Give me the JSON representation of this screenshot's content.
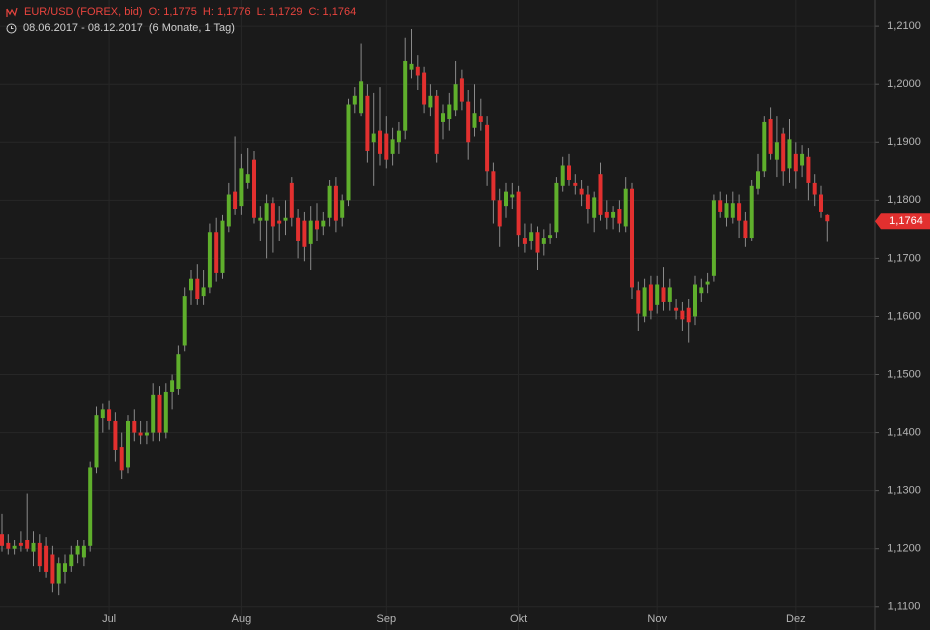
{
  "chart_data": {
    "type": "candlestick",
    "title": "EUR/USD (FOREX, bid)",
    "ohlc_text": [
      "O: 1,1775",
      "H: 1,1776",
      "L: 1,1729",
      "C: 1,1764"
    ],
    "subtitle": "08.06.2017 - 08.12.2017",
    "period": "(6 Monate, 1 Tag)",
    "categories": [
      null,
      null,
      null,
      null,
      null,
      null,
      null,
      null,
      null,
      null,
      null,
      null,
      null,
      null,
      null,
      null,
      null,
      "Jul",
      null,
      null,
      null,
      null,
      null,
      null,
      null,
      null,
      null,
      null,
      null,
      null,
      null,
      null,
      null,
      null,
      null,
      null,
      null,
      null,
      "Aug",
      null,
      null,
      null,
      null,
      null,
      null,
      null,
      null,
      null,
      null,
      null,
      null,
      null,
      null,
      null,
      null,
      null,
      null,
      null,
      null,
      null,
      null,
      "Sep",
      null,
      null,
      null,
      null,
      null,
      null,
      null,
      null,
      null,
      null,
      null,
      null,
      null,
      null,
      null,
      null,
      null,
      null,
      null,
      null,
      "Okt",
      null,
      null,
      null,
      null,
      null,
      null,
      null,
      null,
      null,
      null,
      null,
      null,
      null,
      null,
      null,
      null,
      null,
      null,
      null,
      null,
      null,
      "Nov",
      null,
      null,
      null,
      null,
      null,
      null,
      null,
      null,
      null,
      null,
      null,
      null,
      null,
      null,
      null,
      null,
      null,
      null,
      null,
      null,
      null,
      "Dez",
      null,
      null,
      null,
      null,
      null
    ],
    "open": [
      1.1225,
      1.121,
      1.12,
      1.121,
      1.1215,
      1.1195,
      1.121,
      1.1205,
      1.119,
      1.114,
      1.116,
      1.117,
      1.119,
      1.1185,
      1.1205,
      1.134,
      1.1425,
      1.144,
      1.142,
      1.1375,
      1.134,
      1.142,
      1.14,
      1.1395,
      1.14,
      1.1465,
      1.14,
      1.147,
      1.1475,
      1.155,
      1.1645,
      1.1665,
      1.1635,
      1.165,
      1.1745,
      1.1675,
      1.1755,
      1.1815,
      1.179,
      1.183,
      1.187,
      1.1765,
      1.1765,
      1.1795,
      1.1765,
      1.1765,
      1.183,
      1.177,
      1.1765,
      1.1725,
      1.1765,
      1.1755,
      1.177,
      1.1825,
      1.177,
      1.18,
      1.1965,
      1.195,
      1.198,
      1.19,
      1.192,
      1.1915,
      1.188,
      1.19,
      1.192,
      1.2025,
      1.203,
      1.202,
      1.196,
      1.198,
      1.1935,
      1.194,
      1.1955,
      1.201,
      1.197,
      1.1925,
      1.1945,
      1.193,
      1.185,
      1.18,
      1.179,
      1.1805,
      1.1815,
      1.1735,
      1.173,
      1.1745,
      1.1725,
      1.1735,
      1.1745,
      1.1825,
      1.186,
      1.183,
      1.182,
      1.181,
      1.177,
      1.1845,
      1.178,
      1.177,
      1.1785,
      1.1755,
      1.182,
      1.1645,
      1.16,
      1.1655,
      1.162,
      1.165,
      1.1625,
      1.1615,
      1.161,
      1.1615,
      1.16,
      1.164,
      1.1655,
      1.167,
      1.18,
      1.177,
      1.177,
      1.1795,
      1.1765,
      1.1735,
      1.182,
      1.185,
      1.194,
      1.187,
      1.1915,
      1.1855,
      1.188,
      1.186,
      1.1875,
      1.183,
      1.181,
      1.1775
    ],
    "high": [
      1.126,
      1.1225,
      1.1215,
      1.123,
      1.1295,
      1.123,
      1.1225,
      1.122,
      1.1205,
      1.1185,
      1.119,
      1.1205,
      1.1215,
      1.1215,
      1.135,
      1.1445,
      1.145,
      1.1455,
      1.1435,
      1.14,
      1.143,
      1.144,
      1.142,
      1.142,
      1.1485,
      1.148,
      1.1485,
      1.15,
      1.155,
      1.165,
      1.168,
      1.169,
      1.168,
      1.176,
      1.177,
      1.1775,
      1.183,
      1.191,
      1.188,
      1.189,
      1.1885,
      1.179,
      1.181,
      1.1805,
      1.179,
      1.18,
      1.184,
      1.1785,
      1.178,
      1.179,
      1.1795,
      1.178,
      1.1835,
      1.184,
      1.181,
      1.1975,
      1.1995,
      1.207,
      1.2,
      1.1985,
      1.1995,
      1.1945,
      1.1925,
      1.1935,
      1.208,
      1.2095,
      1.205,
      1.203,
      1.2,
      1.199,
      1.1965,
      1.1985,
      1.204,
      1.2025,
      1.199,
      1.2,
      1.1975,
      1.1945,
      1.1865,
      1.182,
      1.183,
      1.183,
      1.1825,
      1.176,
      1.176,
      1.1755,
      1.175,
      1.176,
      1.184,
      1.1875,
      1.188,
      1.1845,
      1.1835,
      1.1825,
      1.1815,
      1.1865,
      1.18,
      1.179,
      1.18,
      1.184,
      1.183,
      1.166,
      1.1665,
      1.167,
      1.167,
      1.1685,
      1.1665,
      1.163,
      1.1625,
      1.163,
      1.167,
      1.1665,
      1.1675,
      1.181,
      1.1815,
      1.181,
      1.1815,
      1.181,
      1.178,
      1.1835,
      1.188,
      1.1945,
      1.196,
      1.1945,
      1.1925,
      1.194,
      1.19,
      1.1895,
      1.189,
      1.1845,
      1.1825,
      1.1776
    ],
    "low": [
      1.1195,
      1.119,
      1.119,
      1.1195,
      1.1195,
      1.117,
      1.116,
      1.115,
      1.1125,
      1.112,
      1.114,
      1.116,
      1.1175,
      1.117,
      1.1195,
      1.133,
      1.14,
      1.1405,
      1.135,
      1.132,
      1.133,
      1.1385,
      1.138,
      1.138,
      1.1385,
      1.1385,
      1.139,
      1.144,
      1.1465,
      1.154,
      1.162,
      1.162,
      1.162,
      1.164,
      1.166,
      1.1665,
      1.1745,
      1.1775,
      1.1775,
      1.182,
      1.176,
      1.173,
      1.17,
      1.171,
      1.173,
      1.174,
      1.1755,
      1.17,
      1.1695,
      1.168,
      1.173,
      1.174,
      1.1755,
      1.1745,
      1.1755,
      1.179,
      1.195,
      1.1945,
      1.1865,
      1.1825,
      1.186,
      1.1855,
      1.186,
      1.188,
      1.1905,
      1.201,
      1.199,
      1.195,
      1.1945,
      1.1865,
      1.1905,
      1.192,
      1.1945,
      1.1955,
      1.187,
      1.191,
      1.192,
      1.1825,
      1.176,
      1.172,
      1.177,
      1.1785,
      1.172,
      1.171,
      1.1715,
      1.168,
      1.1705,
      1.1725,
      1.1735,
      1.1815,
      1.1825,
      1.181,
      1.179,
      1.176,
      1.1745,
      1.1765,
      1.175,
      1.175,
      1.1745,
      1.1745,
      1.163,
      1.1575,
      1.159,
      1.1595,
      1.1605,
      1.161,
      1.161,
      1.1595,
      1.1575,
      1.1555,
      1.1585,
      1.1625,
      1.164,
      1.166,
      1.177,
      1.1755,
      1.176,
      1.1735,
      1.172,
      1.173,
      1.181,
      1.184,
      1.187,
      1.184,
      1.1825,
      1.183,
      1.182,
      1.184,
      1.18,
      1.179,
      1.177,
      1.1729
    ],
    "close": [
      1.1205,
      1.12,
      1.1205,
      1.1205,
      1.12,
      1.121,
      1.117,
      1.116,
      1.114,
      1.1175,
      1.1175,
      1.119,
      1.1205,
      1.1205,
      1.134,
      1.143,
      1.144,
      1.142,
      1.137,
      1.1335,
      1.142,
      1.14,
      1.1395,
      1.14,
      1.1465,
      1.14,
      1.147,
      1.149,
      1.1535,
      1.1635,
      1.1665,
      1.163,
      1.165,
      1.1745,
      1.1675,
      1.1765,
      1.181,
      1.1785,
      1.1855,
      1.1845,
      1.177,
      1.177,
      1.1795,
      1.1755,
      1.176,
      1.177,
      1.177,
      1.173,
      1.172,
      1.1765,
      1.175,
      1.1765,
      1.1825,
      1.1765,
      1.18,
      1.1965,
      1.198,
      1.2005,
      1.1885,
      1.1915,
      1.188,
      1.187,
      1.1905,
      1.192,
      1.204,
      1.2035,
      1.2015,
      1.1965,
      1.198,
      1.188,
      1.195,
      1.1965,
      1.2,
      1.197,
      1.19,
      1.195,
      1.1935,
      1.185,
      1.18,
      1.1755,
      1.1815,
      1.181,
      1.174,
      1.1725,
      1.1745,
      1.171,
      1.1735,
      1.174,
      1.183,
      1.186,
      1.1835,
      1.1825,
      1.181,
      1.1785,
      1.1805,
      1.1775,
      1.177,
      1.178,
      1.176,
      1.182,
      1.165,
      1.1605,
      1.165,
      1.161,
      1.1655,
      1.1625,
      1.165,
      1.161,
      1.1595,
      1.159,
      1.1655,
      1.165,
      1.166,
      1.18,
      1.178,
      1.1795,
      1.1795,
      1.1765,
      1.1735,
      1.1825,
      1.185,
      1.1935,
      1.188,
      1.19,
      1.185,
      1.1905,
      1.185,
      1.188,
      1.183,
      1.181,
      1.178,
      1.1764
    ],
    "up_color": "#5faf2c",
    "down_color": "#e2302f",
    "ylim": [
      1.106,
      1.2145
    ],
    "yticks": [
      {
        "value": 1.11,
        "label": "1,1100"
      },
      {
        "value": 1.12,
        "label": "1,1200"
      },
      {
        "value": 1.13,
        "label": "1,1300"
      },
      {
        "value": 1.14,
        "label": "1,1400"
      },
      {
        "value": 1.15,
        "label": "1,1500"
      },
      {
        "value": 1.16,
        "label": "1,1600"
      },
      {
        "value": 1.17,
        "label": "1,1700"
      },
      {
        "value": 1.18,
        "label": "1,1800"
      },
      {
        "value": 1.19,
        "label": "1,1900"
      },
      {
        "value": 1.2,
        "label": "1,2000"
      },
      {
        "value": 1.21,
        "label": "1,2100"
      }
    ],
    "last_price": {
      "value": 1.1764,
      "label": "1,1764"
    },
    "grid": true
  }
}
